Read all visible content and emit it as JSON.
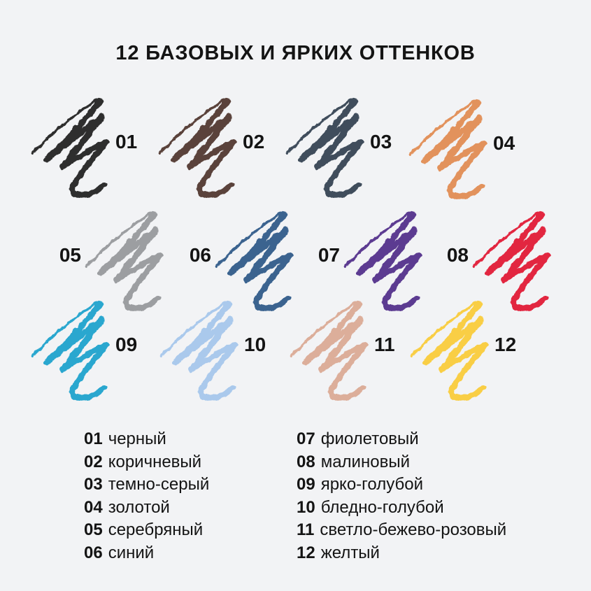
{
  "title": "12 БАЗОВЫХ И ЯРКИХ ОТТЕНКОВ",
  "colors": {
    "background": "#f2f3f5",
    "text": "#141414"
  },
  "swatches": [
    {
      "number": "01",
      "name": "черный",
      "color": "#2d2d2d"
    },
    {
      "number": "02",
      "name": "коричневый",
      "color": "#5a423a"
    },
    {
      "number": "03",
      "name": "темно-серый",
      "color": "#404e5c"
    },
    {
      "number": "04",
      "name": "золотой",
      "color": "#e2925c"
    },
    {
      "number": "05",
      "name": "серебряный",
      "color": "#9c9ea1"
    },
    {
      "number": "06",
      "name": "синий",
      "color": "#3a638f"
    },
    {
      "number": "07",
      "name": "фиолетовый",
      "color": "#5c3a91"
    },
    {
      "number": "08",
      "name": "малиновый",
      "color": "#e2263f"
    },
    {
      "number": "09",
      "name": "ярко-голубой",
      "color": "#29a7cf"
    },
    {
      "number": "10",
      "name": "бледно-голубой",
      "color": "#aac9ec"
    },
    {
      "number": "11",
      "name": "светло-бежево-розовый",
      "color": "#dcae9a"
    },
    {
      "number": "12",
      "name": "желтый",
      "color": "#f9ce45"
    }
  ]
}
